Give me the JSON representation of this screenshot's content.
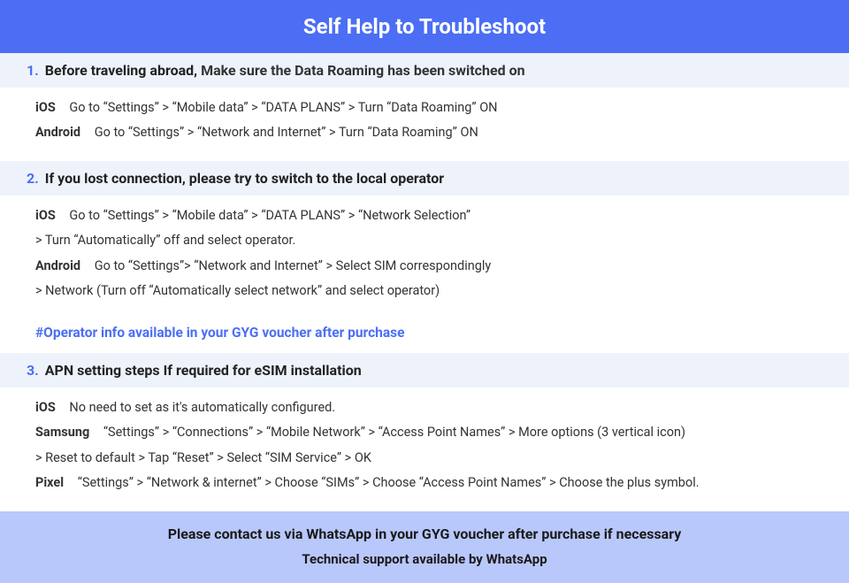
{
  "header": {
    "title": "Self Help to Troubleshoot"
  },
  "sections": [
    {
      "num": "1.",
      "bold": "Before traveling abroad,",
      "rest": "Make sure the Data Roaming has been switched on",
      "lines": [
        {
          "platform": "iOS",
          "text": "Go to “Settings” > “Mobile data” > “DATA PLANS” > Turn “Data Roaming” ON"
        },
        {
          "platform": "Android",
          "text": "Go to “Settings” > “Network and Internet” > Turn “Data Roaming” ON"
        }
      ]
    },
    {
      "num": "2.",
      "bold": "If you lost connection, please try to switch to the local operator",
      "rest": "",
      "lines": [
        {
          "platform": "iOS",
          "text": "Go to “Settings” > “Mobile data” > “DATA PLANS” > “Network Selection”",
          "cont": "> Turn “Automatically” off and select operator."
        },
        {
          "platform": "Android",
          "text": "Go to “Settings”>  “Network and Internet” > Select SIM correspondingly",
          "cont": "> Network (Turn off “Automatically select network” and select operator)"
        }
      ],
      "note": "#Operator info available in your GYG voucher after purchase"
    },
    {
      "num": "3.",
      "bold": "APN setting steps If required for eSIM installation",
      "rest": "",
      "lines": [
        {
          "platform": "iOS",
          "text": "No need to set as it's automatically configured."
        },
        {
          "platform": "Samsung",
          "text": "“Settings” > “Connections” > “Mobile Network” > “Access Point Names” > More options (3 vertical icon)",
          "cont": "> Reset to default > Tap “Reset” > Select “SIM Service” > OK"
        },
        {
          "platform": "Pixel",
          "text": "“Settings” > “Network & internet” > Choose “SIMs” > Choose “Access Point Names” > Choose the plus symbol."
        }
      ]
    }
  ],
  "footer": {
    "line1": "Please contact us via WhatsApp  in your GYG voucher after purchase if necessary",
    "line2": "Technical support available by WhatsApp"
  },
  "colors": {
    "primary": "#4b6ef5",
    "section_bg": "#eef3fb",
    "footer_bg": "#b9c8fb",
    "text": "#333333"
  }
}
